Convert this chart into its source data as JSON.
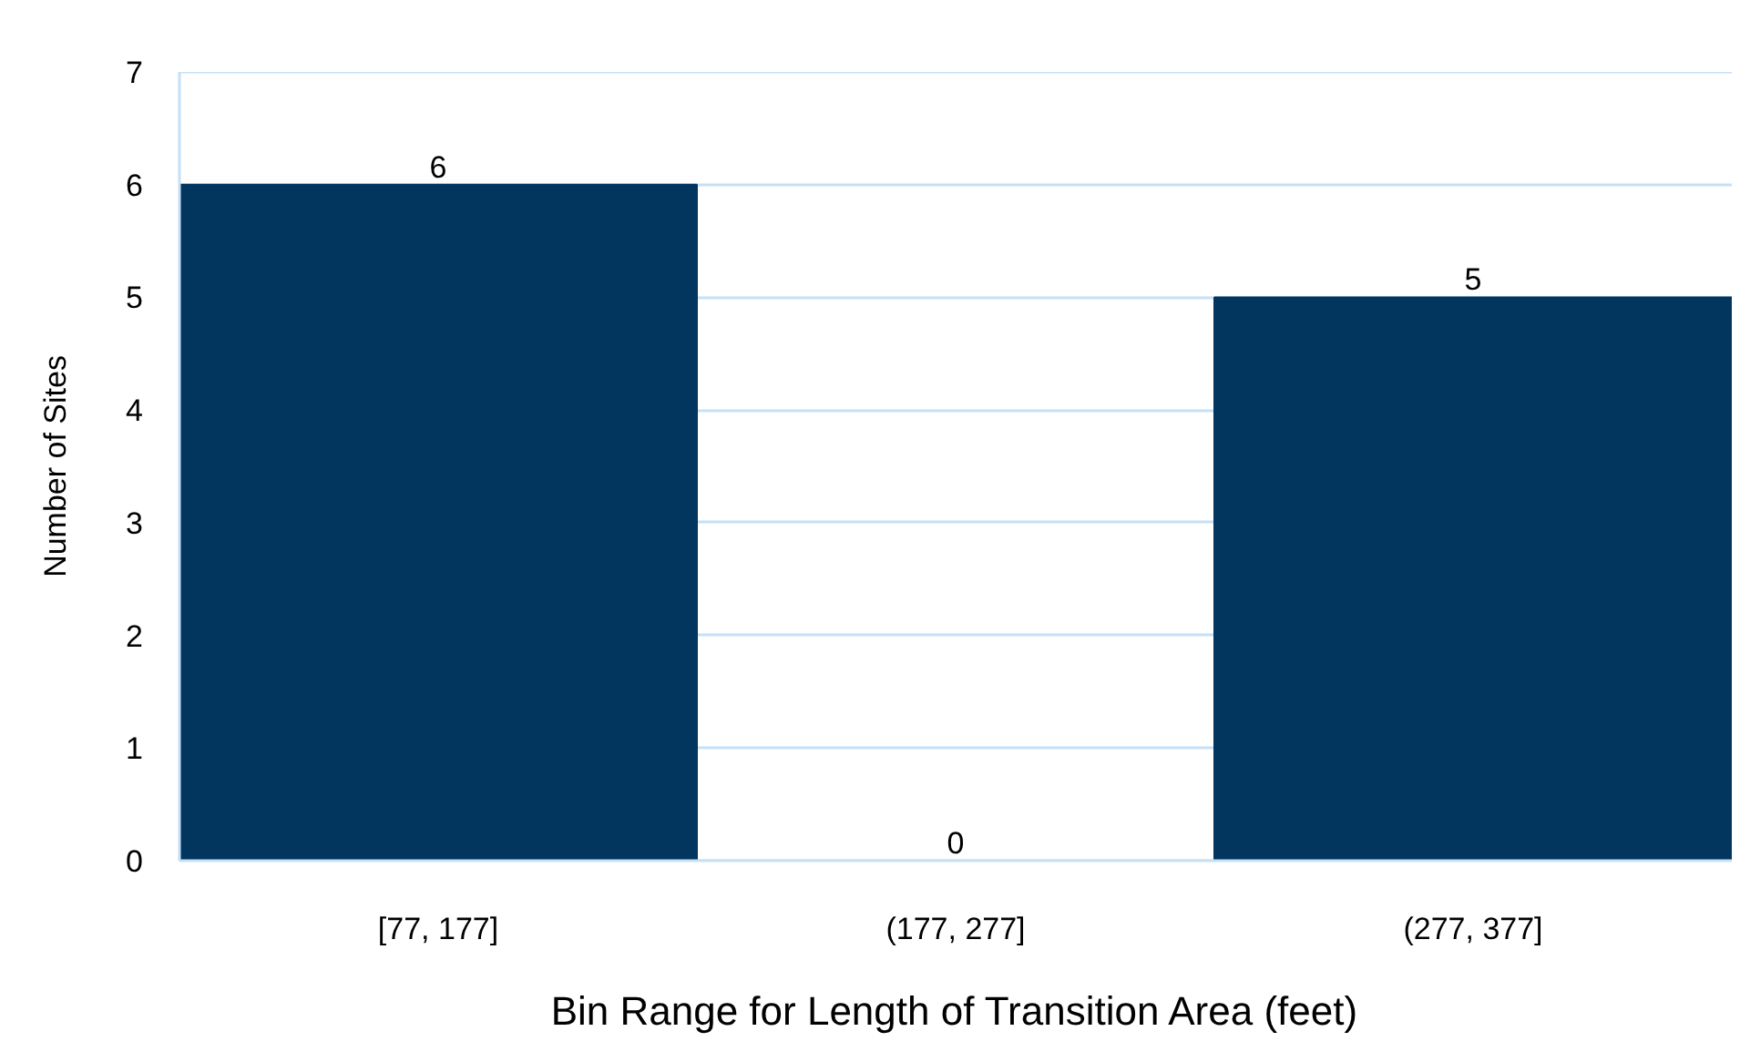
{
  "chart_data": {
    "type": "bar",
    "xlabel": "Bin Range for Length of Transition Area (feet)",
    "ylabel": "Number of Sites",
    "categories": [
      "[77, 177]",
      "(177, 277]",
      "(277, 377]"
    ],
    "values": [
      6,
      0,
      5
    ],
    "color": "#02365f",
    "ylim": [
      0,
      7
    ],
    "yticks": [
      0,
      1,
      2,
      3,
      4,
      5,
      6,
      7
    ],
    "grid": "y",
    "data_labels": true
  }
}
